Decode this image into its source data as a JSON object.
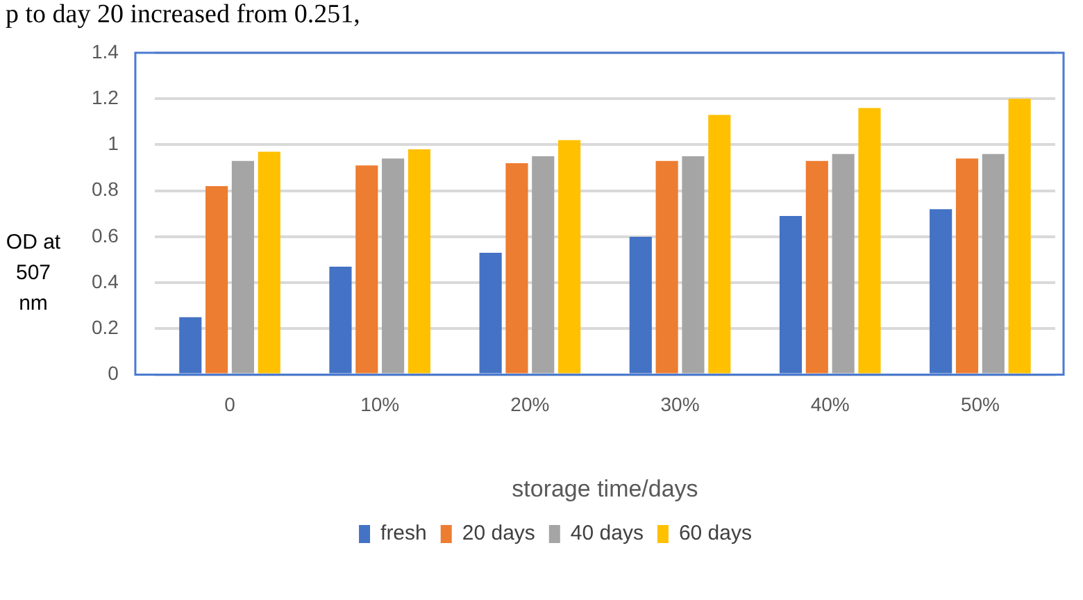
{
  "chart_data": {
    "type": "bar",
    "xlabel": "storage time/days",
    "ylabel": "OD at 507 nm",
    "annotations": [
      "p to day 20 increased from 0.251,"
    ],
    "categories": [
      "0",
      "10%",
      "20%",
      "30%",
      "40%",
      "50%"
    ],
    "series": [
      {
        "name": "fresh",
        "color": "#4472c4",
        "values": [
          0.25,
          0.47,
          0.53,
          0.6,
          0.69,
          0.72
        ]
      },
      {
        "name": "20 days",
        "color": "#ed7d31",
        "values": [
          0.82,
          0.91,
          0.92,
          0.93,
          0.93,
          0.94
        ]
      },
      {
        "name": "40 days",
        "color": "#a5a5a5",
        "values": [
          0.93,
          0.94,
          0.95,
          0.95,
          0.96,
          0.96
        ]
      },
      {
        "name": "60 days",
        "color": "#ffc000",
        "values": [
          0.97,
          0.98,
          1.02,
          1.13,
          1.16,
          1.2
        ]
      }
    ],
    "ylim": [
      0,
      1.4
    ],
    "yticks": [
      0,
      0.2,
      0.4,
      0.6,
      0.8,
      1,
      1.2,
      1.4
    ],
    "grid": "y",
    "legend": "bottom"
  }
}
